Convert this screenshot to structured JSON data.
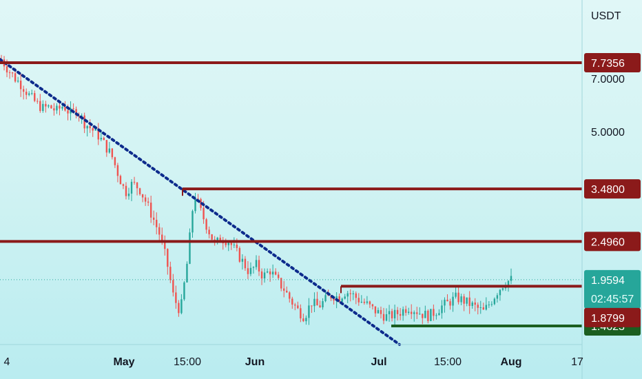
{
  "chart_data": {
    "type": "candlestick",
    "quote_currency": "USDT",
    "y_scale": "log",
    "ylim": [
      1.3,
      11.5
    ],
    "y_ticks": [
      "7.0000",
      "5.0000"
    ],
    "x_tick_labels": [
      {
        "label": "4",
        "bold": false
      },
      {
        "label": "May",
        "bold": true
      },
      {
        "label": "15:00",
        "bold": false
      },
      {
        "label": "Jun",
        "bold": true
      },
      {
        "label": "Jul",
        "bold": true
      },
      {
        "label": "15:00",
        "bold": false
      },
      {
        "label": "Aug",
        "bold": true
      },
      {
        "label": "17",
        "bold": false
      }
    ],
    "horizontal_levels": [
      {
        "value": 7.7356,
        "label": "7.7356",
        "color": "#8b1a1a",
        "extends": "full"
      },
      {
        "value": 3.48,
        "label": "3.4800",
        "color": "#8b1a1a",
        "extends": "from-peak"
      },
      {
        "value": 2.496,
        "label": "2.4960",
        "color": "#8b1a1a",
        "extends": "full"
      },
      {
        "value": 1.8799,
        "label": "1.8799",
        "color": "#8b1a1a",
        "extends": "range-top"
      },
      {
        "value": 1.4623,
        "label": "1.4623",
        "color": "#1b5e20",
        "extends": "range-bottom"
      }
    ],
    "current_price": {
      "value": 1.9594,
      "label": "1.9594",
      "countdown": "02:45:57",
      "color": "#26a69a"
    },
    "trendline": {
      "from": 7.9,
      "to": 1.3,
      "style": "dotted",
      "color": "#0d2b8c"
    },
    "price_path": [
      7.9,
      7.4,
      7.0,
      6.7,
      6.3,
      6.0,
      5.8,
      5.85,
      5.7,
      5.9,
      5.6,
      5.75,
      5.3,
      5.1,
      4.9,
      4.6,
      4.3,
      3.8,
      3.4,
      3.6,
      3.5,
      3.2,
      2.9,
      2.6,
      2.2,
      1.75,
      1.6,
      2.2,
      3.4,
      3.0,
      2.7,
      2.45,
      2.55,
      2.5,
      2.35,
      2.2,
      2.05,
      2.15,
      2.0,
      2.08,
      1.95,
      1.85,
      1.72,
      1.62,
      1.55,
      1.7,
      1.65,
      1.72,
      1.78,
      1.75,
      1.82,
      1.78,
      1.72,
      1.68,
      1.62,
      1.58,
      1.55,
      1.57,
      1.6,
      1.65,
      1.62,
      1.58,
      1.56,
      1.6,
      1.66,
      1.7,
      1.75,
      1.72,
      1.68,
      1.64,
      1.6,
      1.7,
      1.82,
      1.92,
      1.96
    ]
  },
  "colors": {
    "up": "#26a69a",
    "down": "#ef5350",
    "axis_text": "#131722"
  }
}
